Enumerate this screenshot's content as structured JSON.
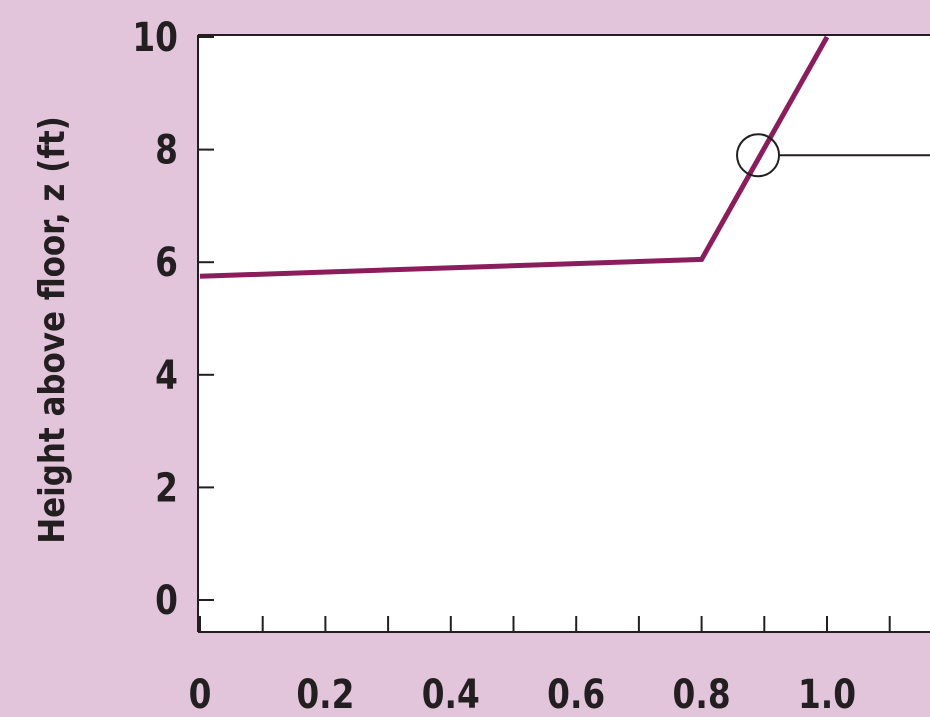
{
  "chart_data": {
    "type": "line",
    "title": "",
    "ylabel": "Height above floor, z (ft)",
    "xlabel": "",
    "xlim": [
      0,
      1.2
    ],
    "ylim": [
      0,
      10
    ],
    "x_ticks": [
      0,
      0.1,
      0.2,
      0.3,
      0.4,
      0.5,
      0.6,
      0.7,
      0.8,
      0.9,
      1.0,
      1.1
    ],
    "x_tick_labels": [
      {
        "value": 0,
        "label": "0"
      },
      {
        "value": 0.2,
        "label": "0.2"
      },
      {
        "value": 0.4,
        "label": "0.4"
      },
      {
        "value": 0.6,
        "label": "0.6"
      },
      {
        "value": 0.8,
        "label": "0.8"
      },
      {
        "value": 1.0,
        "label": "1.0"
      }
    ],
    "y_ticks": [
      {
        "value": 0,
        "label": "0"
      },
      {
        "value": 2,
        "label": "2"
      },
      {
        "value": 4,
        "label": "4"
      },
      {
        "value": 6,
        "label": "6"
      },
      {
        "value": 8,
        "label": "8"
      },
      {
        "value": 10,
        "label": "10"
      }
    ],
    "series": [
      {
        "color": "#8b1d5c",
        "points": [
          {
            "x": 0,
            "y": 5.75
          },
          {
            "x": 0.8,
            "y": 6.05
          },
          {
            "x": 1.0,
            "y": 10
          }
        ]
      }
    ],
    "annotations": [
      {
        "type": "circle-marker",
        "x": 0.89,
        "y": 7.9,
        "leader_line": "right"
      }
    ],
    "grid": false
  },
  "colors": {
    "background": "#e2c4db",
    "plot_area": "#ffffff",
    "line": "#8b1d5c",
    "axis": "#231f20"
  }
}
